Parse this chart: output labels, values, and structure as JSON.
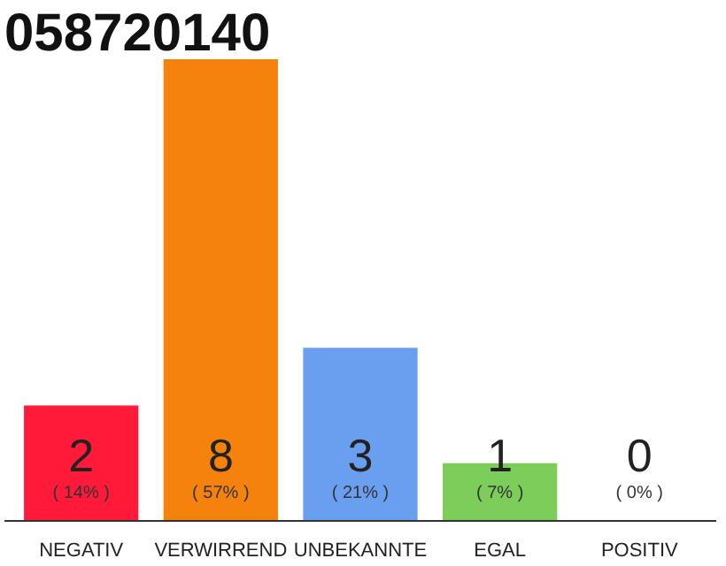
{
  "chart_data": {
    "type": "bar",
    "title": "058720140",
    "categories": [
      "NEGATIV",
      "VERWIRREND",
      "UNBEKANNTE",
      "EGAL",
      "POSITIV"
    ],
    "values": [
      2,
      8,
      3,
      1,
      0
    ],
    "colors": [
      "#ff1a3a",
      "#f5820d",
      "#6a9ff0",
      "#7ccd5a",
      "#d8d8d8"
    ],
    "ylim": [
      0,
      8
    ],
    "tick_labels": "x",
    "grid": false,
    "data_labels": true,
    "annotations": [
      "( 14% )",
      "( 57% )",
      "( 21% )",
      "( 7% )",
      "( 0% )"
    ]
  }
}
